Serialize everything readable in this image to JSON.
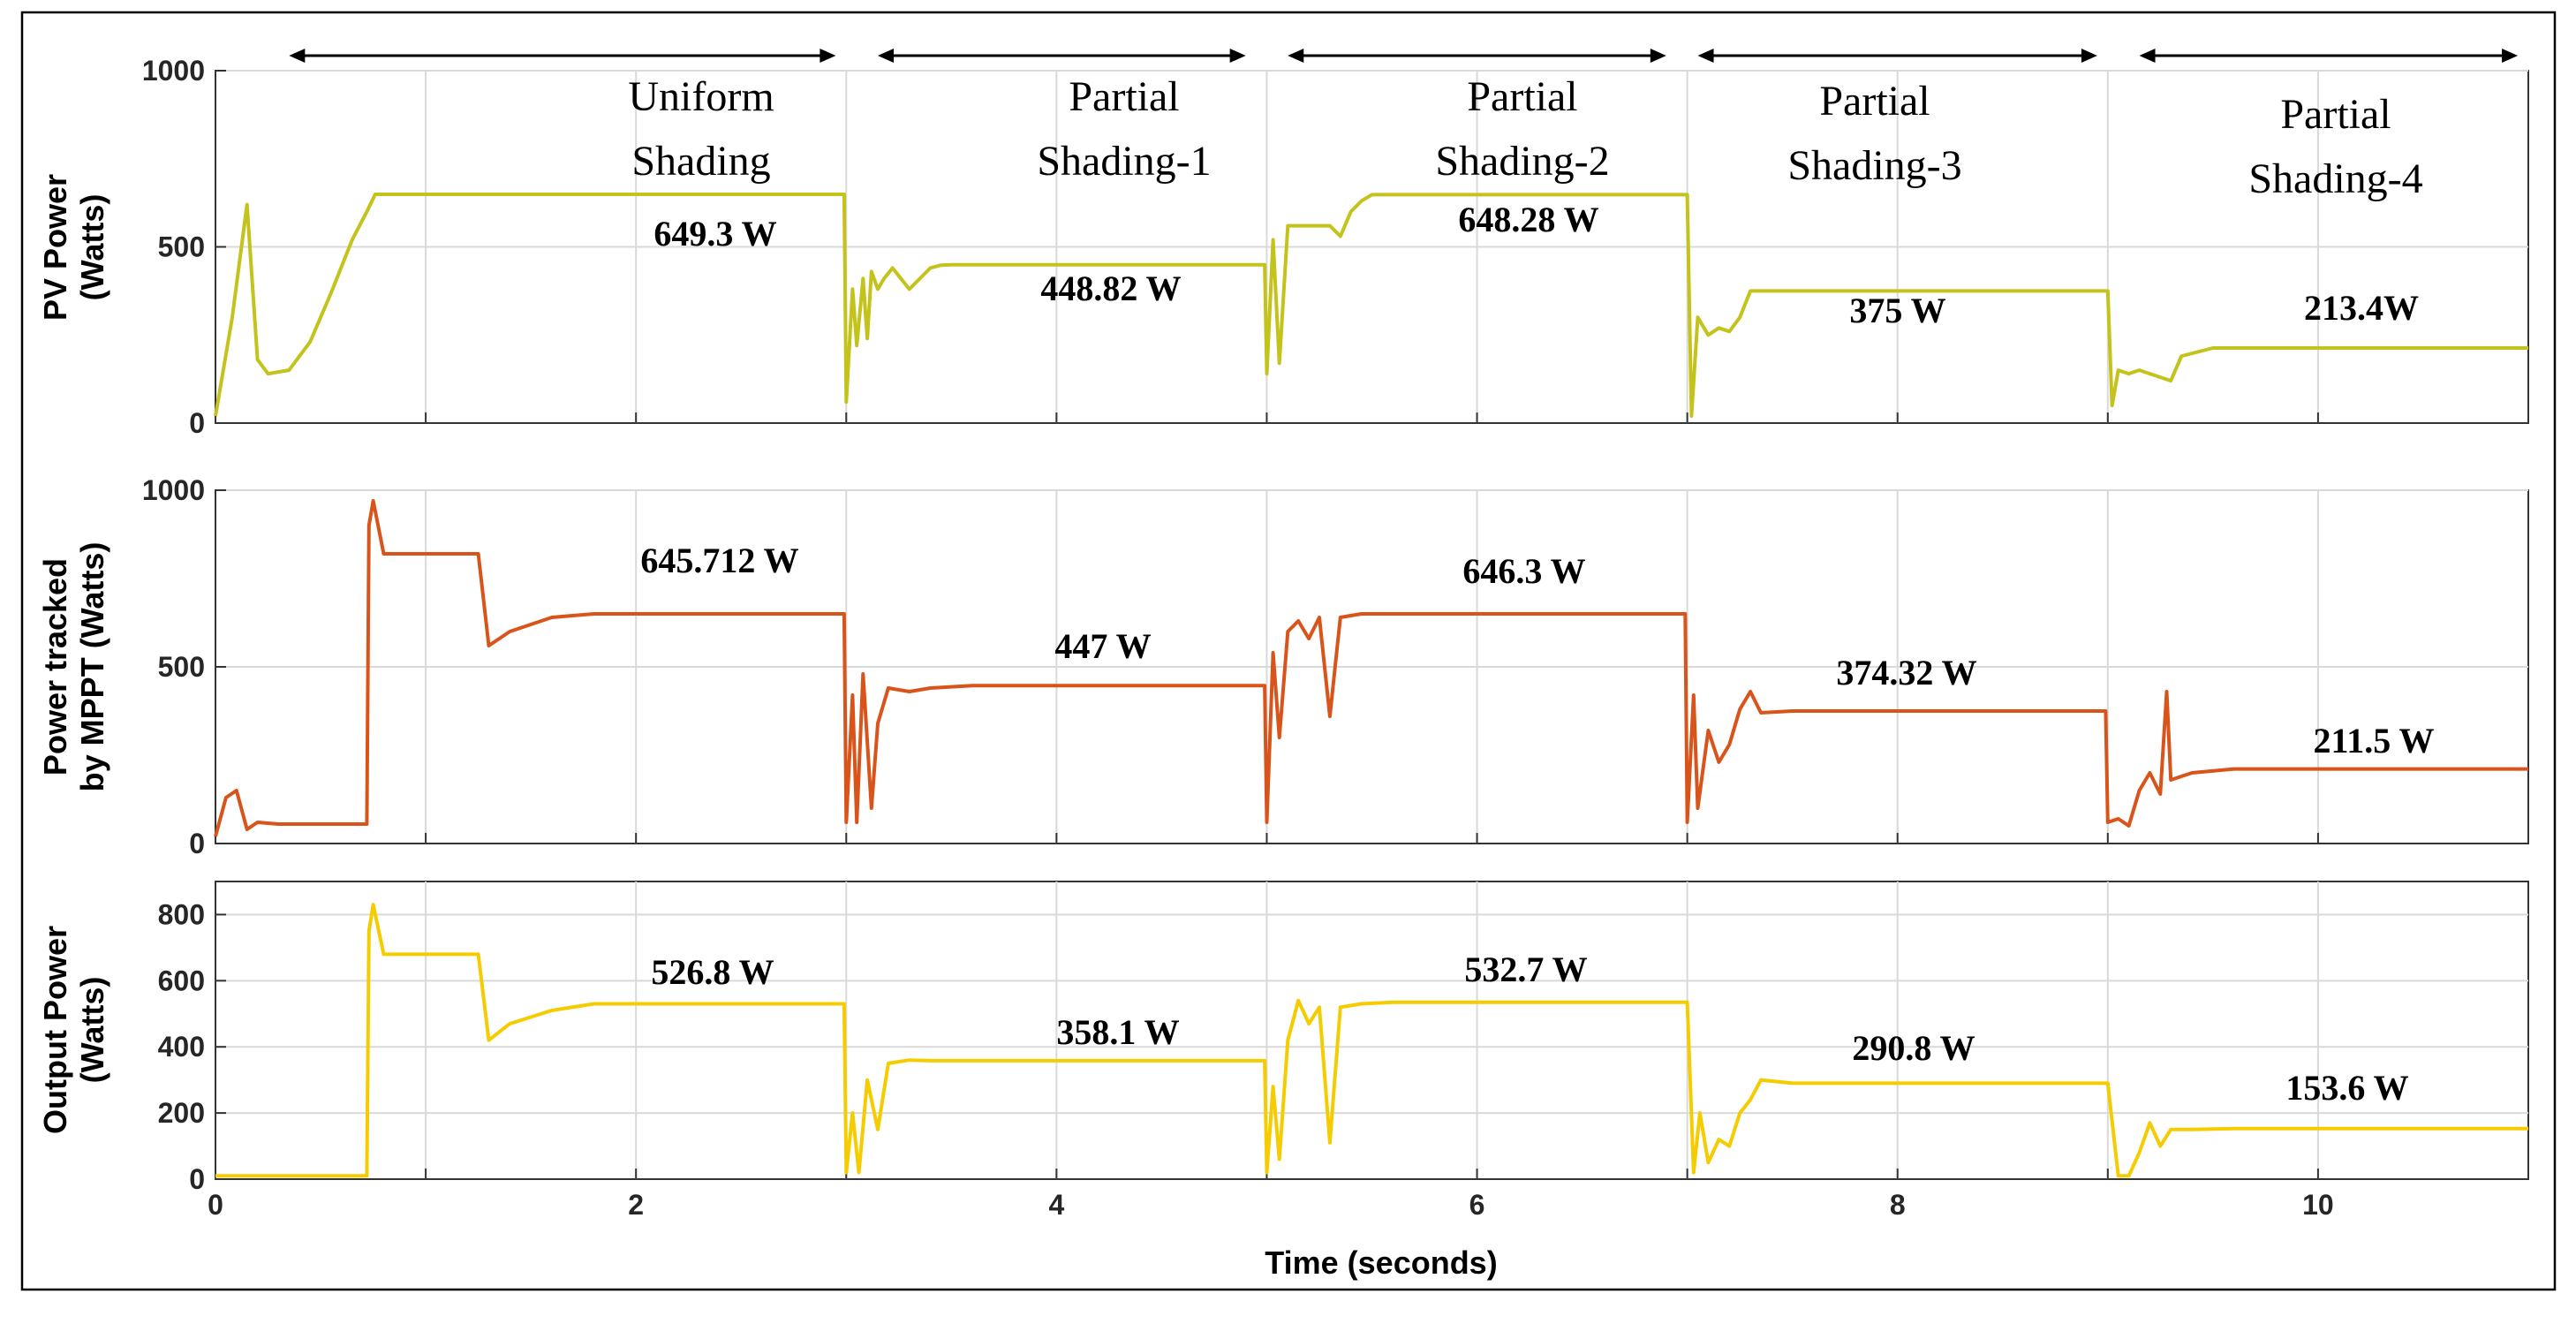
{
  "chart_data": [
    {
      "type": "line",
      "ylabel_lines": [
        "PV Power",
        "(Watts)"
      ],
      "xlim": [
        0,
        11
      ],
      "ylim": [
        0,
        1000
      ],
      "yticks": [
        0,
        500,
        1000
      ],
      "grid": true,
      "series": [
        {
          "name": "PV Power",
          "color": "#c3c31c",
          "x": [
            0,
            0.08,
            0.15,
            0.2,
            0.25,
            0.35,
            0.45,
            0.55,
            0.65,
            0.72,
            0.76,
            0.8,
            1.0,
            2.0,
            2.99,
            3.0,
            3.03,
            3.05,
            3.08,
            3.1,
            3.12,
            3.15,
            3.18,
            3.22,
            3.3,
            3.4,
            3.45,
            3.5,
            4.0,
            4.9,
            4.99,
            5.0,
            5.03,
            5.06,
            5.1,
            5.15,
            5.3,
            5.35,
            5.4,
            5.45,
            5.5,
            5.7,
            6.0,
            6.99,
            7.0,
            7.02,
            7.05,
            7.1,
            7.15,
            7.2,
            7.25,
            7.3,
            7.5,
            8.0,
            8.99,
            9.0,
            9.02,
            9.05,
            9.1,
            9.15,
            9.3,
            9.35,
            9.5,
            10.0,
            11.0
          ],
          "y": [
            20,
            300,
            620,
            180,
            140,
            150,
            230,
            370,
            520,
            600,
            649,
            649,
            649,
            649,
            649,
            60,
            380,
            220,
            410,
            240,
            430,
            380,
            410,
            440,
            380,
            440,
            448,
            449,
            449,
            449,
            449,
            140,
            520,
            170,
            560,
            560,
            560,
            530,
            600,
            630,
            648,
            648,
            648,
            648,
            648,
            20,
            300,
            250,
            270,
            260,
            300,
            375,
            375,
            375,
            375,
            375,
            50,
            150,
            140,
            150,
            120,
            190,
            213,
            213,
            213
          ],
          "value_label": "649.3 W"
        }
      ],
      "value_labels": [
        "649.3 W",
        "448.82 W",
        "648.28 W",
        "375 W",
        "213.4W"
      ],
      "regions": [
        {
          "label_lines": [
            "Uniform",
            "Shading"
          ],
          "x_start": 0.35,
          "x_end": 2.95
        },
        {
          "label_lines": [
            "Partial",
            "Shading-1"
          ],
          "x_start": 3.15,
          "x_end": 4.9
        },
        {
          "label_lines": [
            "Partial",
            "Shading-2"
          ],
          "x_start": 5.1,
          "x_end": 6.9
        },
        {
          "label_lines": [
            "Partial",
            "Shading-3"
          ],
          "x_start": 7.05,
          "x_end": 8.95
        },
        {
          "label_lines": [
            "Partial",
            "Shading-4"
          ],
          "x_start": 9.15,
          "x_end": 10.95
        }
      ]
    },
    {
      "type": "line",
      "ylabel_lines": [
        "Power  tracked",
        "by  MPPT (Watts)"
      ],
      "xlim": [
        0,
        11
      ],
      "ylim": [
        0,
        1000
      ],
      "yticks": [
        0,
        500,
        1000
      ],
      "grid": true,
      "series": [
        {
          "name": "Power tracked by MPPT",
          "color": "#d9541a",
          "x": [
            0,
            0.05,
            0.1,
            0.15,
            0.2,
            0.3,
            0.5,
            0.72,
            0.73,
            0.75,
            0.8,
            1.0,
            1.25,
            1.3,
            1.4,
            1.6,
            1.8,
            2.0,
            2.9,
            2.99,
            3.0,
            3.03,
            3.05,
            3.08,
            3.12,
            3.15,
            3.2,
            3.3,
            3.4,
            3.6,
            4.0,
            4.9,
            4.99,
            5.0,
            5.03,
            5.06,
            5.1,
            5.15,
            5.2,
            5.25,
            5.3,
            5.35,
            5.45,
            5.6,
            6.0,
            6.99,
            7.0,
            7.03,
            7.05,
            7.1,
            7.15,
            7.2,
            7.25,
            7.3,
            7.35,
            7.5,
            8.0,
            8.99,
            9.0,
            9.05,
            9.1,
            9.15,
            9.2,
            9.25,
            9.28,
            9.3,
            9.4,
            9.6,
            10.0,
            11.0
          ],
          "y": [
            20,
            130,
            150,
            40,
            60,
            55,
            55,
            55,
            900,
            970,
            820,
            820,
            820,
            560,
            600,
            640,
            650,
            650,
            650,
            650,
            60,
            420,
            60,
            480,
            100,
            340,
            440,
            430,
            440,
            447,
            447,
            447,
            447,
            60,
            540,
            300,
            600,
            630,
            580,
            640,
            360,
            640,
            650,
            650,
            650,
            650,
            60,
            420,
            100,
            320,
            230,
            280,
            380,
            430,
            370,
            375,
            375,
            375,
            60,
            70,
            50,
            150,
            200,
            140,
            430,
            180,
            200,
            211,
            211,
            211
          ],
          "value_label": "645.712 W"
        }
      ],
      "value_labels": [
        "645.712 W",
        "447 W",
        "646.3 W",
        "374.32 W",
        "211.5 W"
      ]
    },
    {
      "type": "line",
      "xlabel": "Time (seconds)",
      "ylabel_lines": [
        "Output Power",
        "(Watts)"
      ],
      "xlim": [
        0,
        11
      ],
      "ylim": [
        0,
        900
      ],
      "yticks": [
        0,
        200,
        400,
        600,
        800
      ],
      "xticks": [
        0,
        2,
        4,
        6,
        8,
        10
      ],
      "grid": true,
      "series": [
        {
          "name": "Output Power",
          "color": "#f5cc00",
          "x": [
            0,
            0.72,
            0.73,
            0.75,
            0.8,
            1.0,
            1.25,
            1.3,
            1.4,
            1.6,
            1.8,
            2.0,
            2.9,
            2.99,
            3.0,
            3.03,
            3.06,
            3.1,
            3.15,
            3.2,
            3.3,
            3.4,
            3.6,
            4.0,
            4.9,
            4.99,
            5.0,
            5.03,
            5.06,
            5.1,
            5.15,
            5.2,
            5.25,
            5.3,
            5.35,
            5.45,
            5.6,
            6.0,
            6.99,
            7.0,
            7.03,
            7.06,
            7.1,
            7.15,
            7.2,
            7.25,
            7.3,
            7.35,
            7.5,
            8.0,
            8.99,
            9.0,
            9.05,
            9.1,
            9.15,
            9.2,
            9.25,
            9.3,
            9.4,
            9.6,
            10.0,
            11.0
          ],
          "y": [
            10,
            10,
            750,
            830,
            680,
            680,
            680,
            420,
            470,
            510,
            530,
            530,
            530,
            530,
            20,
            200,
            20,
            300,
            150,
            350,
            360,
            358,
            358,
            358,
            358,
            358,
            20,
            280,
            60,
            420,
            540,
            470,
            520,
            110,
            520,
            530,
            535,
            535,
            535,
            535,
            20,
            200,
            50,
            120,
            100,
            200,
            240,
            300,
            290,
            290,
            290,
            290,
            10,
            10,
            80,
            170,
            100,
            150,
            150,
            153,
            153,
            153
          ],
          "value_label": "526.8 W"
        }
      ],
      "value_labels": [
        "526.8 W",
        "358.1 W",
        "532.7 W",
        "290.8 W",
        "153.6 W"
      ]
    }
  ]
}
